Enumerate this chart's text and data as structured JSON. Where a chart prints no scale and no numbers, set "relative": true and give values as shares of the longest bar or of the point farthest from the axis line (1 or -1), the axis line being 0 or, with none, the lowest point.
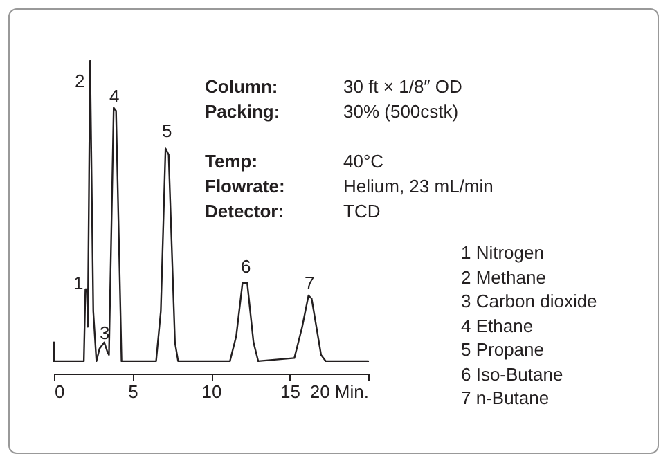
{
  "chart_data": {
    "type": "line",
    "relative": true,
    "grid": false,
    "marker": "none",
    "line_style": "solid",
    "xlim": [
      0,
      20
    ],
    "xticks": [
      0,
      5,
      10,
      15,
      {
        "value": 20,
        "label": "20 Min."
      }
    ],
    "series": [
      {
        "color": "#231f20",
        "x": [
          0,
          0,
          1.9,
          2.0,
          2.1,
          2.15,
          2.3,
          2.5,
          2.7,
          2.9,
          3.2,
          3.4,
          3.5,
          3.8,
          3.95,
          4.3,
          6.5,
          6.8,
          7.1,
          7.3,
          7.7,
          7.9,
          11.2,
          11.6,
          12.0,
          12.3,
          12.7,
          13.0,
          15.3,
          15.8,
          16.2,
          16.4,
          17.0,
          17.3,
          20
        ],
        "values": [
          0.1,
          0.04,
          0.04,
          0.27,
          0.27,
          0.15,
          1.0,
          0.2,
          0.04,
          0.08,
          0.1,
          0.07,
          0.06,
          0.85,
          0.84,
          0.04,
          0.04,
          0.2,
          0.72,
          0.7,
          0.1,
          0.04,
          0.04,
          0.12,
          0.29,
          0.29,
          0.1,
          0.04,
          0.05,
          0.15,
          0.25,
          0.24,
          0.06,
          0.04,
          0.04
        ]
      }
    ],
    "annotations": [
      "Column:",
      "30 ft × 1/8″ OD",
      "Packing:",
      "30% (500cstk)",
      "Temp:",
      "40°C",
      "Flowrate:",
      "Helium, 23 mL/min",
      "Detector:",
      "TCD",
      "1 Nitrogen",
      "2 Methane",
      "3 Carbon dioxide",
      "4 Ethane",
      "5 Propane",
      "6 Iso-Butane",
      "7 n-Butane",
      "1",
      "2",
      "3",
      "4",
      "5",
      "6",
      "7"
    ]
  }
}
